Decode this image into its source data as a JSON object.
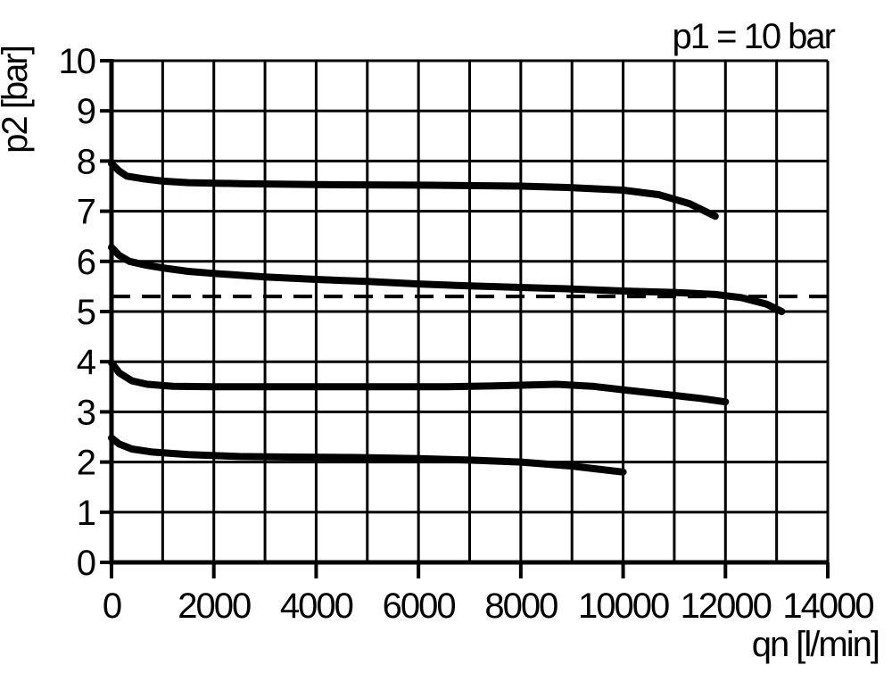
{
  "colors": {
    "foreground": "#000000",
    "background": "#ffffff"
  },
  "chart_data": {
    "type": "line",
    "title": "p1 = 10 bar",
    "xlabel": "qn [l/min]",
    "ylabel": "p2 [bar]",
    "xlim": [
      0,
      14000
    ],
    "ylim": [
      0,
      10
    ],
    "grid": true,
    "x_grid_step": 1000,
    "y_grid_step": 1,
    "x_ticks": [
      0,
      2000,
      4000,
      6000,
      8000,
      10000,
      12000,
      14000
    ],
    "y_ticks": [
      0,
      1,
      2,
      3,
      4,
      5,
      6,
      7,
      8,
      9,
      10
    ],
    "legend": false,
    "line_color": "#000000",
    "reference_line": {
      "y": 5.3,
      "style": "dashed"
    },
    "series": [
      {
        "points": [
          [
            0,
            7.95
          ],
          [
            150,
            7.8
          ],
          [
            300,
            7.7
          ],
          [
            600,
            7.65
          ],
          [
            1000,
            7.6
          ],
          [
            1500,
            7.57
          ],
          [
            2500,
            7.55
          ],
          [
            4000,
            7.53
          ],
          [
            6000,
            7.52
          ],
          [
            8000,
            7.5
          ],
          [
            9000,
            7.47
          ],
          [
            10000,
            7.42
          ],
          [
            10700,
            7.33
          ],
          [
            11300,
            7.15
          ],
          [
            11800,
            6.9
          ]
        ]
      },
      {
        "points": [
          [
            0,
            6.28
          ],
          [
            150,
            6.12
          ],
          [
            350,
            6.0
          ],
          [
            700,
            5.92
          ],
          [
            1000,
            5.87
          ],
          [
            1500,
            5.8
          ],
          [
            2000,
            5.76
          ],
          [
            3000,
            5.69
          ],
          [
            4000,
            5.64
          ],
          [
            5000,
            5.6
          ],
          [
            6000,
            5.55
          ],
          [
            7000,
            5.51
          ],
          [
            8000,
            5.48
          ],
          [
            9000,
            5.45
          ],
          [
            10000,
            5.41
          ],
          [
            11000,
            5.38
          ],
          [
            11800,
            5.34
          ],
          [
            12300,
            5.28
          ],
          [
            12800,
            5.15
          ],
          [
            13100,
            5.0
          ]
        ]
      },
      {
        "points": [
          [
            0,
            3.98
          ],
          [
            150,
            3.78
          ],
          [
            400,
            3.62
          ],
          [
            700,
            3.55
          ],
          [
            1200,
            3.51
          ],
          [
            2000,
            3.5
          ],
          [
            3500,
            3.5
          ],
          [
            5000,
            3.5
          ],
          [
            6500,
            3.5
          ],
          [
            7500,
            3.52
          ],
          [
            8700,
            3.55
          ],
          [
            9400,
            3.51
          ],
          [
            10000,
            3.44
          ],
          [
            10800,
            3.35
          ],
          [
            11500,
            3.27
          ],
          [
            12000,
            3.2
          ]
        ]
      },
      {
        "points": [
          [
            0,
            2.48
          ],
          [
            150,
            2.36
          ],
          [
            400,
            2.26
          ],
          [
            800,
            2.2
          ],
          [
            1500,
            2.15
          ],
          [
            2500,
            2.11
          ],
          [
            3500,
            2.1
          ],
          [
            4800,
            2.09
          ],
          [
            6000,
            2.07
          ],
          [
            7000,
            2.04
          ],
          [
            8000,
            2.0
          ],
          [
            9000,
            1.92
          ],
          [
            10000,
            1.8
          ]
        ]
      }
    ]
  }
}
